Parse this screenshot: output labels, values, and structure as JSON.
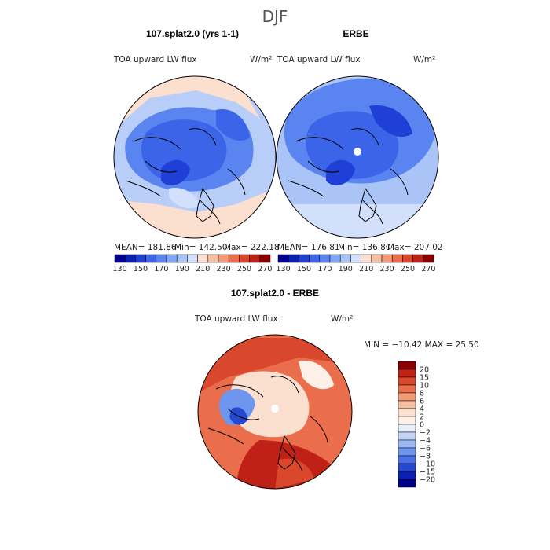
{
  "main_title": "DJF",
  "colors": {
    "ocean_ref": "#3f6fe0",
    "land_ref": "#6f99f0",
    "ocean_diff": "#d9472c",
    "coast": "#000000"
  },
  "panels": [
    {
      "id": "model",
      "title": "107.splat2.0 (yrs 1-1)",
      "field_label": "TOA upward LW flux",
      "units": "W/m²",
      "stats": {
        "mean": "MEAN= 181.86",
        "min": "Min= 142.50",
        "max": "Max= 222.18"
      },
      "pole_hole": false
    },
    {
      "id": "obs",
      "title": "ERBE",
      "field_label": "TOA upward LW flux",
      "units": "W/m²",
      "stats": {
        "mean": "MEAN= 176.81",
        "min": "Min= 136.80",
        "max": "Max= 207.02"
      },
      "pole_hole": true
    },
    {
      "id": "diff",
      "title": "107.splat2.0 - ERBE",
      "field_label": "TOA upward LW flux",
      "units": "W/m²",
      "stats": {
        "minmax": "MIN = −10.42 MAX =  25.50"
      },
      "pole_hole": true
    }
  ],
  "chart_data": [
    {
      "type": "heatmap",
      "projection": "north-polar-stereographic",
      "title": "107.splat2.0 (yrs 1-1)",
      "variable": "TOA upward LW flux",
      "units": "W/m²",
      "mean": 181.86,
      "min": 142.5,
      "max": 222.18,
      "colorbar": {
        "levels": [
          130,
          140,
          150,
          160,
          170,
          180,
          190,
          200,
          210,
          220,
          230,
          240,
          250,
          260,
          270
        ],
        "tick_labels": [
          "130",
          "150",
          "170",
          "190",
          "210",
          "230",
          "250",
          "270"
        ],
        "colors": [
          "#00008b",
          "#0a1fb4",
          "#1f3fd6",
          "#3b64e8",
          "#5a85f0",
          "#82a6f5",
          "#aac4f8",
          "#d3e0fb",
          "#fbe0d0",
          "#f7c0a3",
          "#f39a76",
          "#ea6e4c",
          "#d9472c",
          "#bf2116",
          "#8b0000"
        ]
      }
    },
    {
      "type": "heatmap",
      "projection": "north-polar-stereographic",
      "title": "ERBE",
      "variable": "TOA upward LW flux",
      "units": "W/m²",
      "mean": 176.81,
      "min": 136.8,
      "max": 207.02,
      "colorbar": {
        "levels": [
          130,
          140,
          150,
          160,
          170,
          180,
          190,
          200,
          210,
          220,
          230,
          240,
          250,
          260,
          270
        ],
        "tick_labels": [
          "130",
          "150",
          "170",
          "190",
          "210",
          "230",
          "250",
          "270"
        ],
        "colors": [
          "#00008b",
          "#0a1fb4",
          "#1f3fd6",
          "#3b64e8",
          "#5a85f0",
          "#82a6f5",
          "#aac4f8",
          "#d3e0fb",
          "#fbe0d0",
          "#f7c0a3",
          "#f39a76",
          "#ea6e4c",
          "#d9472c",
          "#bf2116",
          "#8b0000"
        ]
      }
    },
    {
      "type": "heatmap",
      "projection": "north-polar-stereographic",
      "title": "107.splat2.0 - ERBE",
      "variable": "TOA upward LW flux",
      "units": "W/m²",
      "min": -10.42,
      "max": 25.5,
      "colorbar": {
        "orientation": "vertical",
        "levels": [
          -20,
          -15,
          -10,
          -8,
          -6,
          -4,
          -2,
          0,
          2,
          4,
          6,
          8,
          10,
          15,
          20
        ],
        "tick_labels": [
          "20",
          "15",
          "10",
          "8",
          "6",
          "4",
          "2",
          "0",
          "−2",
          "−4",
          "−6",
          "−8",
          "−10",
          "−15",
          "−20"
        ],
        "colors": [
          "#8b0000",
          "#bf2116",
          "#d9472c",
          "#ea6e4c",
          "#f39a76",
          "#f7c0a3",
          "#fbe0d0",
          "#fdf0e6",
          "#e6eefc",
          "#c3d6f9",
          "#9ab8f5",
          "#6f96ef",
          "#4a72e6",
          "#2548d0",
          "#0a1fb4",
          "#00008b"
        ]
      }
    }
  ]
}
